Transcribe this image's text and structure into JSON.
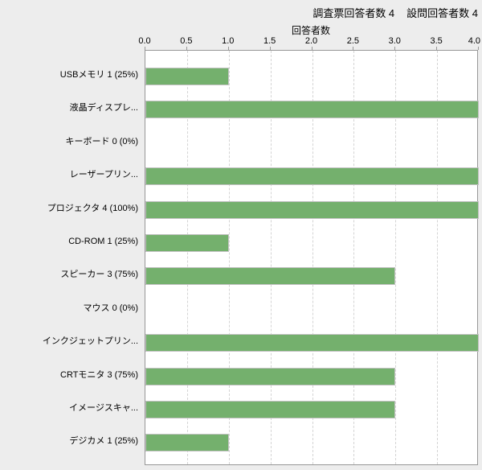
{
  "header": {
    "survey_respondents": "調査票回答者数 4",
    "question_respondents": "設問回答者数 4"
  },
  "chart_data": {
    "type": "bar",
    "orientation": "horizontal",
    "title": "",
    "xlabel": "回答者数",
    "ylabel": "",
    "xlim": [
      0,
      4
    ],
    "xticks": [
      0,
      0.5,
      1,
      1.5,
      2,
      2.5,
      3,
      3.5,
      4
    ],
    "xtick_labels": [
      "0.0",
      "0.5",
      "1.0",
      "1.5",
      "2.0",
      "2.5",
      "3.0",
      "3.5",
      "4.0"
    ],
    "grid": "vertical-dashed",
    "legend_position": "none",
    "categories": [
      "USBメモリ 1 (25%)",
      "液晶ディスプレ...",
      "キーボード 0 (0%)",
      "レーザープリン...",
      "プロジェクタ 4 (100%)",
      "CD-ROM 1 (25%)",
      "スピーカー 3 (75%)",
      "マウス 0 (0%)",
      "インクジェットプリン...",
      "CRTモニタ 3 (75%)",
      "イメージスキャ...",
      "デジカメ 1 (25%)"
    ],
    "values": [
      1,
      4,
      0,
      4,
      4,
      1,
      3,
      0,
      4,
      3,
      3,
      1
    ]
  },
  "colors": {
    "background": "#ededed",
    "plot_background": "#ffffff",
    "bar": "#74b06d",
    "bar_border": "#c2c2c2",
    "grid": "#d4d4d4",
    "axis": "#979797",
    "text": "#000000"
  }
}
